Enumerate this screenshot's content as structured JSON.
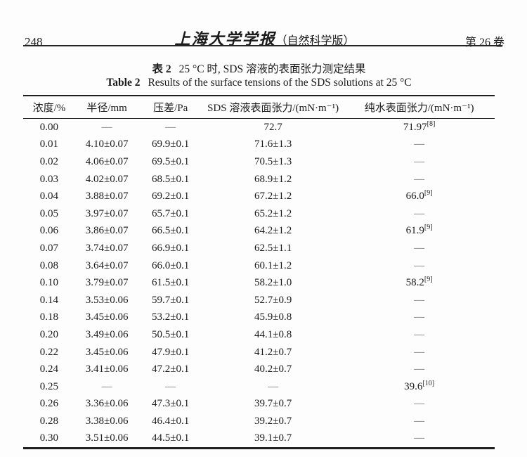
{
  "header": {
    "page_number": "248",
    "journal_title": "上海大学学报",
    "journal_edition": "（自然科学版）",
    "volume": "第 26 卷"
  },
  "table": {
    "caption_zh_label": "表 2",
    "caption_zh_text": "25 °C 时, SDS 溶液的表面张力测定结果",
    "caption_en_label": "Table 2",
    "caption_en_text": "Results of the surface tensions of the SDS solutions at 25 °C",
    "columns": [
      "浓度/%",
      "半径/mm",
      "压差/Pa",
      "SDS 溶液表面张力/(mN·m⁻¹)",
      "纯水表面张力/(mN·m⁻¹)"
    ],
    "rows": [
      {
        "concentration": "0.00",
        "radius": "—",
        "pressure": "—",
        "sds_tension": "72.7",
        "water_tension": "71.97",
        "water_ref": "[8]"
      },
      {
        "concentration": "0.01",
        "radius": "4.10±0.07",
        "pressure": "69.9±0.1",
        "sds_tension": "71.6±1.3",
        "water_tension": "—"
      },
      {
        "concentration": "0.02",
        "radius": "4.06±0.07",
        "pressure": "69.5±0.1",
        "sds_tension": "70.5±1.3",
        "water_tension": "—"
      },
      {
        "concentration": "0.03",
        "radius": "4.02±0.07",
        "pressure": "68.5±0.1",
        "sds_tension": "68.9±1.2",
        "water_tension": "—"
      },
      {
        "concentration": "0.04",
        "radius": "3.88±0.07",
        "pressure": "69.2±0.1",
        "sds_tension": "67.2±1.2",
        "water_tension": "66.0",
        "water_ref": "[9]"
      },
      {
        "concentration": "0.05",
        "radius": "3.97±0.07",
        "pressure": "65.7±0.1",
        "sds_tension": "65.2±1.2",
        "water_tension": "—"
      },
      {
        "concentration": "0.06",
        "radius": "3.86±0.07",
        "pressure": "66.5±0.1",
        "sds_tension": "64.2±1.2",
        "water_tension": "61.9",
        "water_ref": "[9]"
      },
      {
        "concentration": "0.07",
        "radius": "3.74±0.07",
        "pressure": "66.9±0.1",
        "sds_tension": "62.5±1.1",
        "water_tension": "—"
      },
      {
        "concentration": "0.08",
        "radius": "3.64±0.07",
        "pressure": "66.0±0.1",
        "sds_tension": "60.1±1.2",
        "water_tension": "—"
      },
      {
        "concentration": "0.10",
        "radius": "3.79±0.07",
        "pressure": "61.5±0.1",
        "sds_tension": "58.2±1.0",
        "water_tension": "58.2",
        "water_ref": "[9]"
      },
      {
        "concentration": "0.14",
        "radius": "3.53±0.06",
        "pressure": "59.7±0.1",
        "sds_tension": "52.7±0.9",
        "water_tension": "—"
      },
      {
        "concentration": "0.18",
        "radius": "3.45±0.06",
        "pressure": "53.2±0.1",
        "sds_tension": "45.9±0.8",
        "water_tension": "—"
      },
      {
        "concentration": "0.20",
        "radius": "3.49±0.06",
        "pressure": "50.5±0.1",
        "sds_tension": "44.1±0.8",
        "water_tension": "—"
      },
      {
        "concentration": "0.22",
        "radius": "3.45±0.06",
        "pressure": "47.9±0.1",
        "sds_tension": "41.2±0.7",
        "water_tension": "—"
      },
      {
        "concentration": "0.24",
        "radius": "3.41±0.06",
        "pressure": "47.2±0.1",
        "sds_tension": "40.2±0.7",
        "water_tension": "—"
      },
      {
        "concentration": "0.25",
        "radius": "—",
        "pressure": "—",
        "sds_tension": "—",
        "water_tension": "39.6",
        "water_ref": "[10]"
      },
      {
        "concentration": "0.26",
        "radius": "3.36±0.06",
        "pressure": "47.3±0.1",
        "sds_tension": "39.7±0.7",
        "water_tension": "—"
      },
      {
        "concentration": "0.28",
        "radius": "3.38±0.06",
        "pressure": "46.4±0.1",
        "sds_tension": "39.2±0.7",
        "water_tension": "—"
      },
      {
        "concentration": "0.30",
        "radius": "3.51±0.06",
        "pressure": "44.5±0.1",
        "sds_tension": "39.1±0.7",
        "water_tension": "—"
      }
    ]
  }
}
